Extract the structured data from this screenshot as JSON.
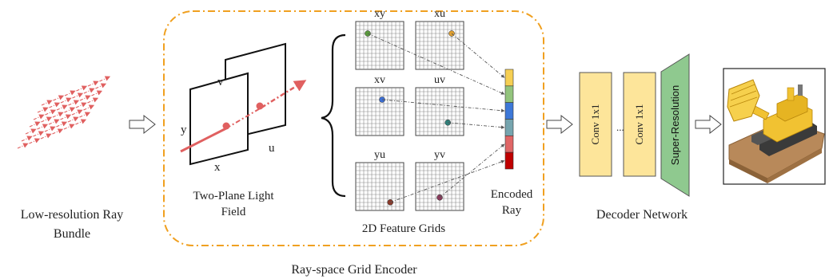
{
  "ray_bundle": {
    "label_line1": "Low-resolution Ray",
    "label_line2": "Bundle"
  },
  "light_field": {
    "label_line1": "Two-Plane Light",
    "label_line2": "Field",
    "axis_labels": {
      "v": "v",
      "y": "y",
      "u": "u",
      "x": "x"
    }
  },
  "encoder": {
    "label": "Ray-space Grid Encoder",
    "border_color": "#f0a020"
  },
  "feature_grids": {
    "label": "2D Feature Grids",
    "grids": [
      {
        "name": "xy",
        "dot_color": "#5a9a3c"
      },
      {
        "name": "xu",
        "dot_color": "#e0a030"
      },
      {
        "name": "xv",
        "dot_color": "#3b6fd8"
      },
      {
        "name": "uv",
        "dot_color": "#2f7f7a"
      },
      {
        "name": "yu",
        "dot_color": "#8b3a2a"
      },
      {
        "name": "yv",
        "dot_color": "#8a3b5c"
      }
    ]
  },
  "encoded_ray": {
    "label_line1": "Encoded",
    "label_line2": "Ray",
    "segment_colors": [
      "#f6cf53",
      "#93c47d",
      "#3d78d8",
      "#76a5af",
      "#e06666",
      "#c00000"
    ]
  },
  "decoder": {
    "label": "Decoder Network",
    "conv1_label": "Conv 1x1",
    "conv2_label": "Conv 1x1",
    "ellipsis": "...",
    "sr_label": "Super-Resolution",
    "conv_color": "#fde59a",
    "sr_color": "#8fc98f"
  },
  "colors": {
    "arrow": "#e06060",
    "ray": "#e06060"
  }
}
